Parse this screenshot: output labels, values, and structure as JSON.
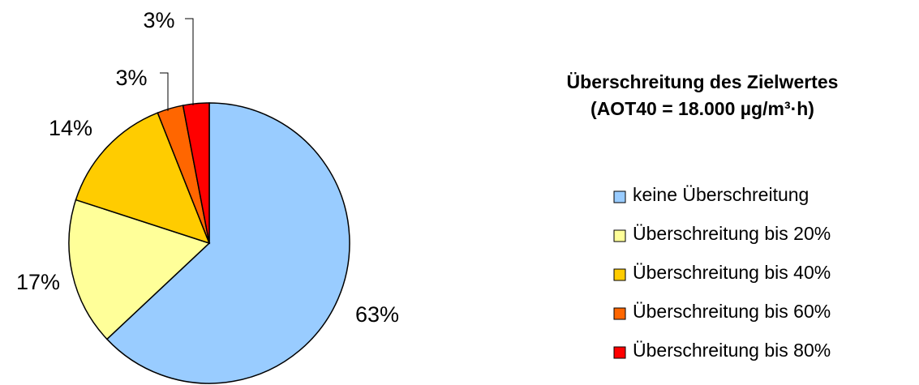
{
  "chart_data": {
    "type": "pie",
    "title": "Überschreitung des Zielwertes",
    "subtitle": "(AOT40 = 18.000 µg/m³·h)",
    "categories": [
      "keine Überschreitung",
      "Überschreitung bis 20%",
      "Überschreitung bis 40%",
      "Überschreitung bis 60%",
      "Überschreitung bis 80%"
    ],
    "values": [
      63,
      17,
      14,
      3,
      3
    ],
    "value_labels": [
      "63%",
      "17%",
      "14%",
      "3%",
      "3%"
    ],
    "colors": [
      "#99ccff",
      "#ffff99",
      "#ffcc00",
      "#ff6600",
      "#ff0000"
    ],
    "legend": "right"
  }
}
